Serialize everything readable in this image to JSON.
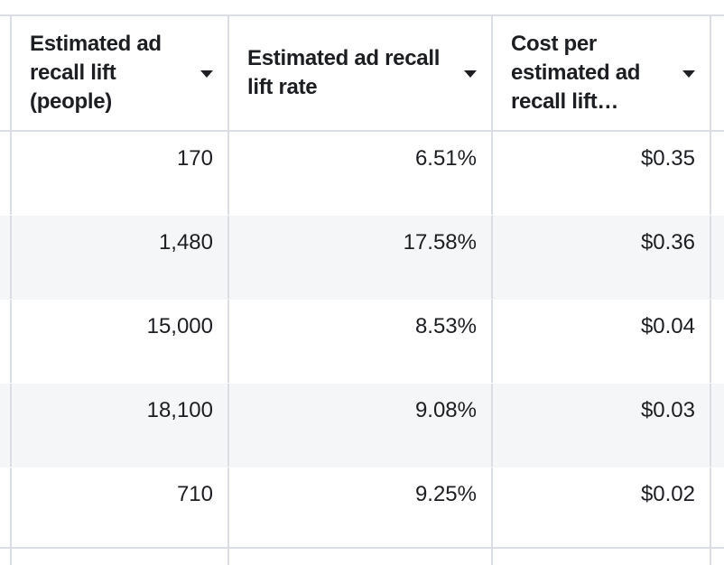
{
  "columns": [
    {
      "label": "Estimated ad recall lift (people)",
      "sort_icon": "caret-down"
    },
    {
      "label": "Estimated ad recall lift rate",
      "sort_icon": "caret-down"
    },
    {
      "label": "Cost per estimated ad recall lift…",
      "sort_icon": "caret-down"
    }
  ],
  "rows": [
    [
      "170",
      "6.51%",
      "$0.35"
    ],
    [
      "1,480",
      "17.58%",
      "$0.36"
    ],
    [
      "15,000",
      "8.53%",
      "$0.04"
    ],
    [
      "18,100",
      "9.08%",
      "$0.03"
    ],
    [
      "710",
      "9.25%",
      "$0.02"
    ]
  ],
  "colors": {
    "border": "#dadde1",
    "alt_row": "#f5f6f7",
    "text": "#1c1e21"
  }
}
